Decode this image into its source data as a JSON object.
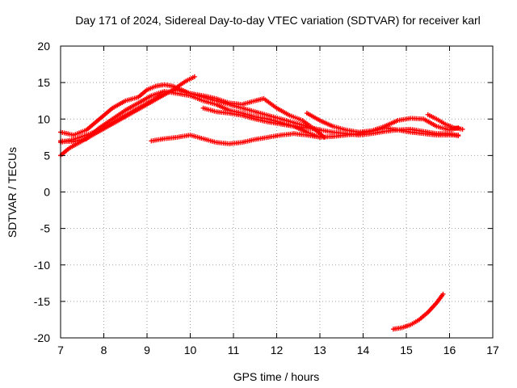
{
  "chart_data": {
    "type": "scatter",
    "title": "Day 171 of 2024, Sidereal Day-to-day VTEC variation (SDTVAR) for receiver karl",
    "xlabel": "GPS time / hours",
    "ylabel": "SDTVAR / TECUs",
    "xlim": [
      7,
      17
    ],
    "ylim": [
      -20,
      20
    ],
    "xticks": [
      "7",
      "8",
      "9",
      "10",
      "11",
      "12",
      "13",
      "14",
      "15",
      "16",
      "17"
    ],
    "yticks": [
      "20",
      "15",
      "10",
      "5",
      "0",
      "-5",
      "-10",
      "-15",
      "-20"
    ],
    "grid": true,
    "marker": "plus",
    "color": "#ff0000",
    "series": [
      {
        "name": "track-1",
        "x": [
          7.0,
          7.3,
          7.6,
          7.9,
          8.2,
          8.5,
          8.8,
          9.0,
          9.2,
          9.4,
          9.6,
          9.8,
          10.0,
          10.3,
          10.6,
          10.9,
          11.2,
          11.5,
          11.8,
          12.1,
          12.4,
          12.7,
          13.0
        ],
        "y": [
          8.2,
          7.8,
          8.5,
          10.0,
          11.5,
          12.5,
          13.0,
          14.0,
          14.5,
          14.7,
          14.5,
          14.0,
          13.5,
          13.0,
          12.5,
          12.0,
          11.5,
          11.0,
          10.5,
          10.0,
          9.5,
          9.0,
          8.5
        ]
      },
      {
        "name": "track-2",
        "x": [
          7.0,
          7.3,
          7.6,
          7.9,
          8.2,
          8.5,
          8.8,
          9.1,
          9.4,
          9.7,
          10.0,
          10.3,
          10.6,
          10.9,
          11.2,
          11.5,
          11.7,
          12.0,
          12.3,
          12.6,
          12.9,
          13.1
        ],
        "y": [
          6.8,
          7.2,
          7.8,
          8.5,
          9.5,
          10.5,
          11.5,
          12.5,
          13.5,
          14.0,
          13.5,
          13.2,
          12.8,
          12.2,
          12.0,
          12.5,
          12.8,
          11.5,
          10.5,
          9.8,
          8.5,
          7.5
        ]
      },
      {
        "name": "track-3",
        "x": [
          7.0,
          7.2,
          7.5,
          7.8,
          8.1,
          8.4,
          8.7,
          9.0,
          9.3,
          9.6,
          9.9,
          10.1
        ],
        "y": [
          5.0,
          6.0,
          7.0,
          8.0,
          9.0,
          10.0,
          11.0,
          12.0,
          13.0,
          14.0,
          15.2,
          15.8
        ]
      },
      {
        "name": "track-4",
        "x": [
          7.0,
          7.3,
          7.6,
          7.9,
          8.2,
          8.5,
          8.8,
          9.1,
          9.4,
          9.7,
          10.0,
          10.3,
          10.6,
          10.9,
          11.2,
          11.5,
          11.8,
          12.1,
          12.4,
          12.7,
          13.0
        ],
        "y": [
          7.0,
          6.9,
          7.3,
          8.8,
          10.0,
          11.2,
          12.2,
          13.2,
          13.8,
          13.5,
          13.2,
          12.5,
          12.0,
          11.2,
          10.8,
          10.3,
          10.0,
          9.5,
          9.0,
          8.2,
          7.5
        ]
      },
      {
        "name": "track-5",
        "x": [
          9.1,
          9.4,
          9.7,
          10.0,
          10.3,
          10.6,
          10.9,
          11.2,
          11.5,
          11.8,
          12.1,
          12.4,
          12.7,
          13.0,
          13.3,
          13.6,
          13.9,
          14.2,
          14.5,
          14.8,
          15.1,
          15.4,
          15.7,
          16.0,
          16.2
        ],
        "y": [
          7.0,
          7.3,
          7.5,
          7.8,
          7.3,
          6.8,
          6.6,
          6.8,
          7.2,
          7.5,
          7.8,
          8.0,
          7.8,
          7.5,
          7.6,
          7.8,
          8.0,
          8.3,
          8.8,
          8.5,
          8.2,
          8.0,
          7.8,
          7.8,
          7.8
        ]
      },
      {
        "name": "track-6",
        "x": [
          10.3,
          10.6,
          10.9,
          11.2,
          11.5,
          11.8,
          12.1,
          12.4,
          12.7,
          13.0,
          13.3,
          13.6,
          13.9,
          14.2,
          14.5,
          14.8,
          15.1,
          15.4,
          15.7,
          16.0,
          16.2
        ],
        "y": [
          11.5,
          11.0,
          10.8,
          10.5,
          10.0,
          9.6,
          9.3,
          9.0,
          8.8,
          8.5,
          8.2,
          8.0,
          7.8,
          8.0,
          8.3,
          8.5,
          8.6,
          8.3,
          8.0,
          8.0,
          7.7
        ]
      },
      {
        "name": "track-7",
        "x": [
          12.7,
          13.0,
          13.3,
          13.6,
          13.9,
          14.2,
          14.5,
          14.8,
          15.1,
          15.4,
          15.7,
          16.0,
          16.2
        ],
        "y": [
          10.8,
          9.8,
          9.0,
          8.5,
          8.2,
          8.4,
          9.0,
          9.8,
          10.1,
          10.0,
          9.0,
          8.5,
          8.8
        ]
      },
      {
        "name": "track-8",
        "x": [
          15.5,
          15.7,
          15.9,
          16.1,
          16.3
        ],
        "y": [
          10.6,
          10.0,
          9.3,
          8.8,
          8.6
        ]
      },
      {
        "name": "track-9",
        "x": [
          14.7,
          14.9,
          15.1,
          15.3,
          15.5,
          15.7,
          15.85
        ],
        "y": [
          -18.8,
          -18.6,
          -18.2,
          -17.5,
          -16.5,
          -15.2,
          -14.0
        ]
      }
    ]
  }
}
